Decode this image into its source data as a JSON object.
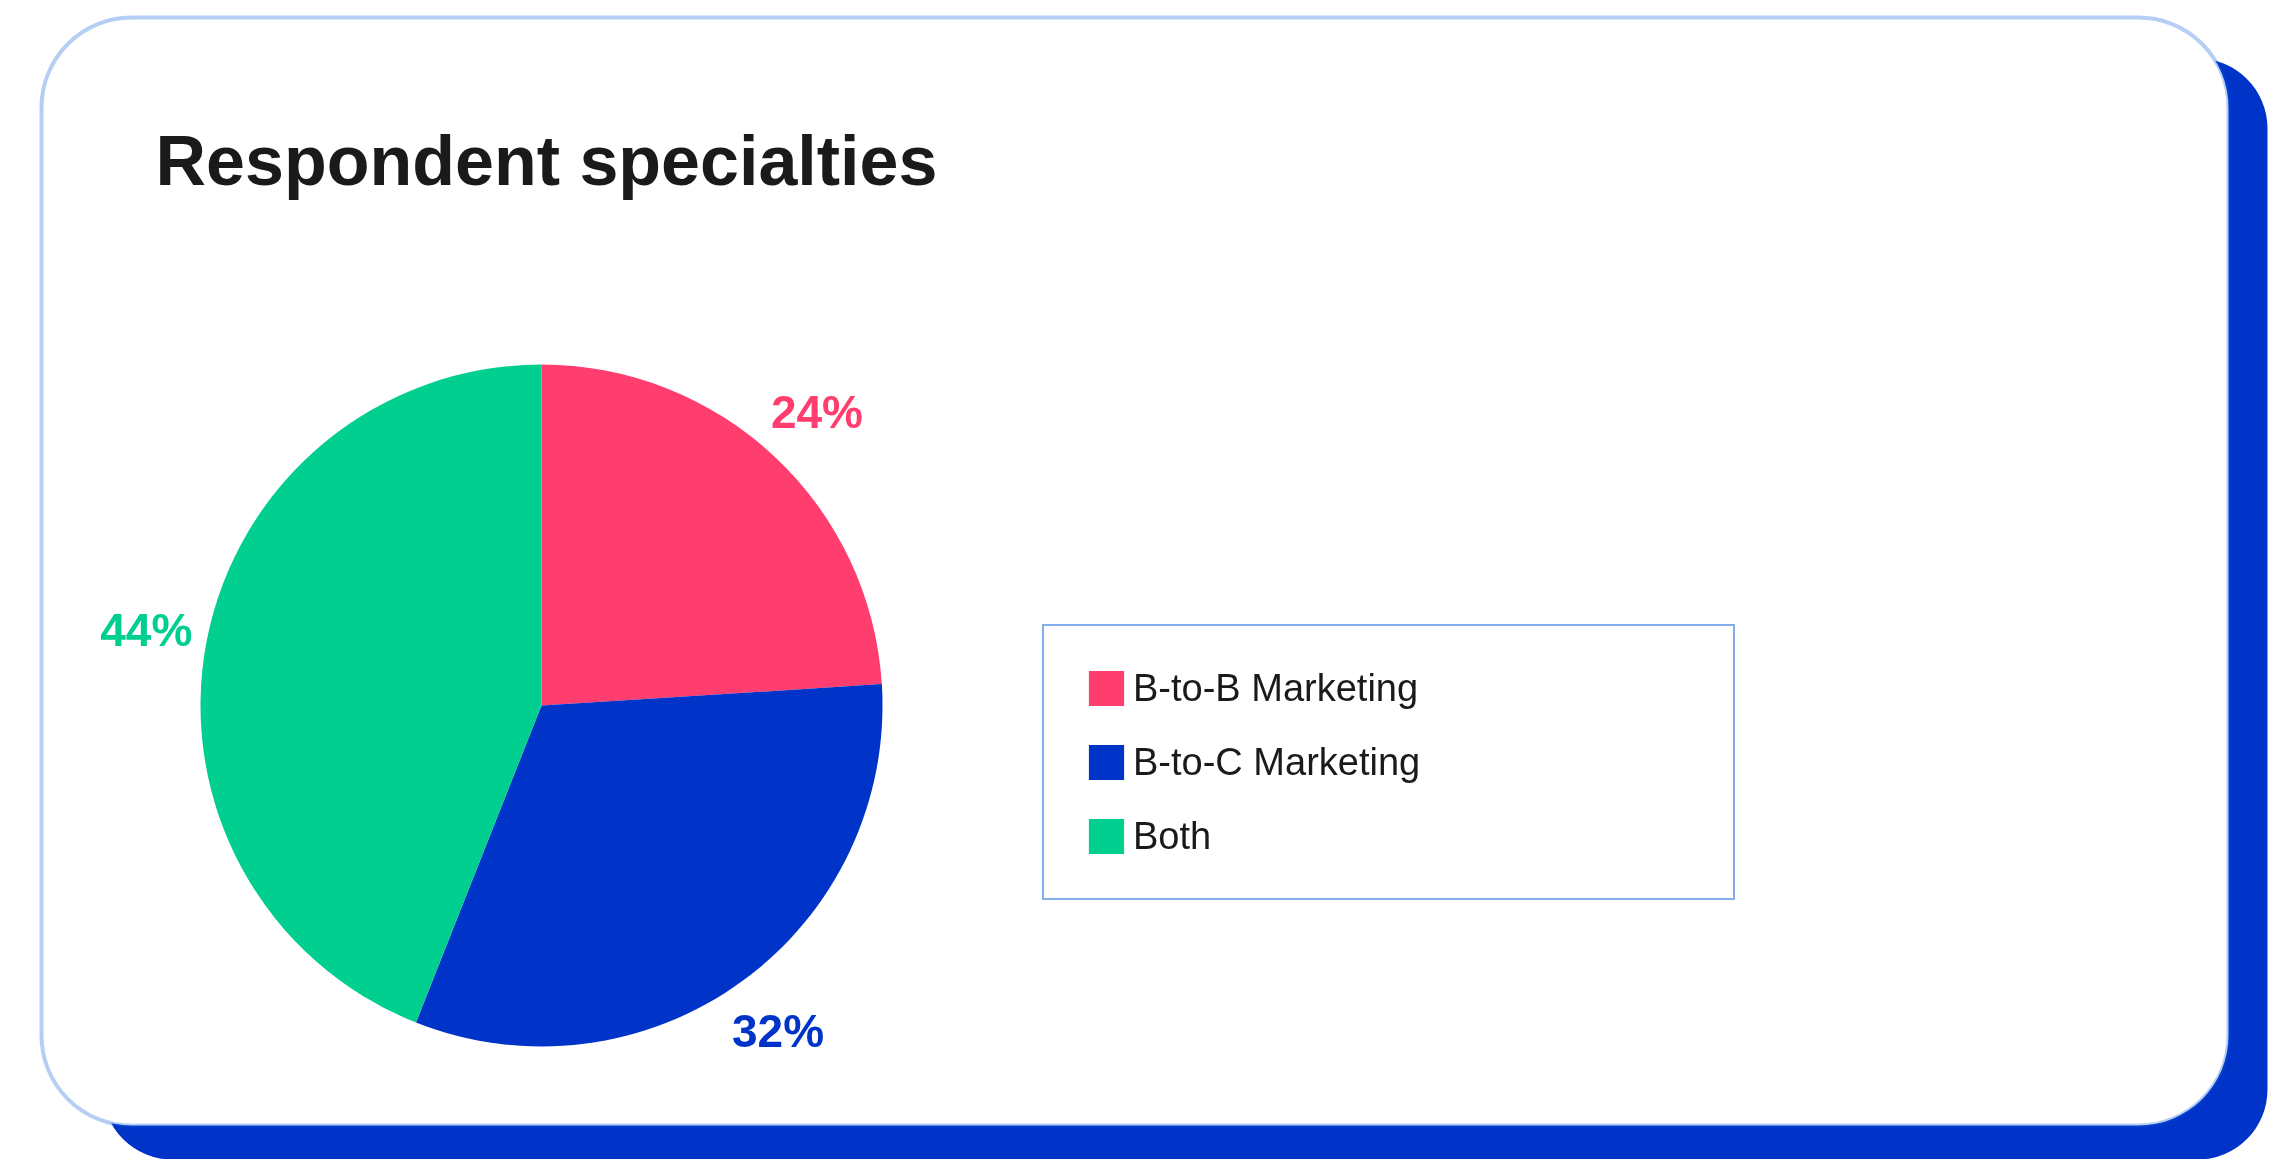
{
  "chart_data": {
    "type": "pie",
    "title": "Respondent specialties",
    "categories": [
      "B-to-B Marketing",
      "B-to-C Marketing",
      "Both"
    ],
    "values": [
      24,
      32,
      44
    ],
    "colors": [
      "#ff3d6e",
      "#0033c8",
      "#00cf8f"
    ],
    "value_labels": [
      "24%",
      "32%",
      "44%"
    ],
    "legend": "right"
  }
}
